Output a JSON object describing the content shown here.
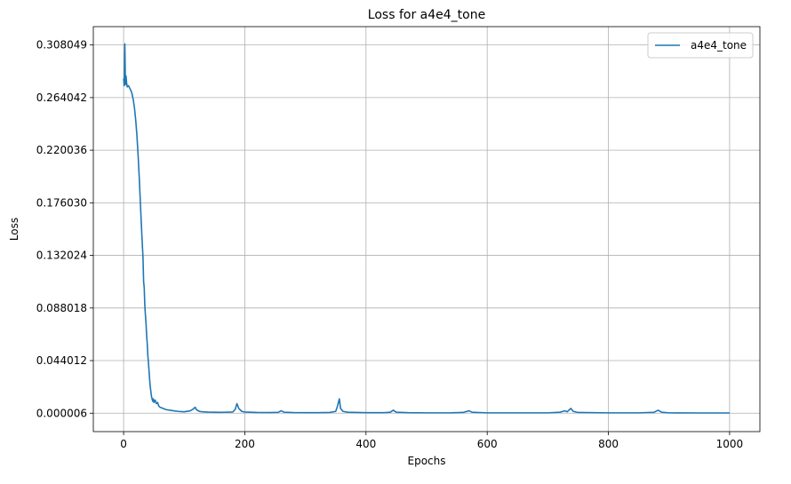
{
  "chart_data": {
    "type": "line",
    "title": "Loss for a4e4_tone",
    "xlabel": "Epochs",
    "ylabel": "Loss",
    "xlim": [
      -50,
      1050
    ],
    "ylim": [
      -0.0154,
      0.3234
    ],
    "x_ticks": [
      0,
      200,
      400,
      600,
      800,
      1000
    ],
    "y_ticks": [
      6e-06,
      0.044012,
      0.088018,
      0.132024,
      0.17603,
      0.220036,
      0.264042,
      0.308049
    ],
    "x_tick_labels": [
      "0",
      "200",
      "400",
      "600",
      "800",
      "1000"
    ],
    "y_tick_labels": [
      "0.000006",
      "0.044012",
      "0.088018",
      "0.132024",
      "0.176030",
      "0.220036",
      "0.264042",
      "0.308049"
    ],
    "grid": true,
    "legend_position": "top-right",
    "series": [
      {
        "name": "a4e4_tone",
        "color": "#1f77b4",
        "points": [
          [
            0,
            0.28
          ],
          [
            1,
            0.274
          ],
          [
            2,
            0.309
          ],
          [
            3,
            0.275
          ],
          [
            4,
            0.282
          ],
          [
            5,
            0.276
          ],
          [
            6,
            0.273
          ],
          [
            8,
            0.274
          ],
          [
            10,
            0.272
          ],
          [
            12,
            0.27
          ],
          [
            14,
            0.267
          ],
          [
            16,
            0.262
          ],
          [
            18,
            0.255
          ],
          [
            20,
            0.245
          ],
          [
            22,
            0.232
          ],
          [
            24,
            0.215
          ],
          [
            26,
            0.195
          ],
          [
            28,
            0.172
          ],
          [
            30,
            0.15
          ],
          [
            32,
            0.13
          ],
          [
            33,
            0.11
          ],
          [
            34,
            0.105
          ],
          [
            35,
            0.09
          ],
          [
            36,
            0.082
          ],
          [
            37,
            0.075
          ],
          [
            38,
            0.065
          ],
          [
            39,
            0.058
          ],
          [
            40,
            0.048
          ],
          [
            41,
            0.042
          ],
          [
            42,
            0.035
          ],
          [
            43,
            0.028
          ],
          [
            44,
            0.022
          ],
          [
            45,
            0.018
          ],
          [
            46,
            0.014
          ],
          [
            47,
            0.012
          ],
          [
            48,
            0.01
          ],
          [
            49,
            0.012
          ],
          [
            50,
            0.009
          ],
          [
            52,
            0.011
          ],
          [
            54,
            0.008
          ],
          [
            56,
            0.009
          ],
          [
            58,
            0.006
          ],
          [
            60,
            0.005
          ],
          [
            65,
            0.004
          ],
          [
            70,
            0.003
          ],
          [
            80,
            0.0022
          ],
          [
            90,
            0.0015
          ],
          [
            100,
            0.0012
          ],
          [
            110,
            0.002
          ],
          [
            115,
            0.0035
          ],
          [
            118,
            0.005
          ],
          [
            120,
            0.003
          ],
          [
            125,
            0.0015
          ],
          [
            130,
            0.0012
          ],
          [
            140,
            0.0009
          ],
          [
            160,
            0.0007
          ],
          [
            180,
            0.001
          ],
          [
            184,
            0.003
          ],
          [
            187,
            0.008
          ],
          [
            190,
            0.004
          ],
          [
            195,
            0.0015
          ],
          [
            200,
            0.001
          ],
          [
            220,
            0.0006
          ],
          [
            240,
            0.0005
          ],
          [
            255,
            0.0007
          ],
          [
            260,
            0.002
          ],
          [
            265,
            0.0008
          ],
          [
            280,
            0.0005
          ],
          [
            300,
            0.0004
          ],
          [
            320,
            0.0004
          ],
          [
            340,
            0.0006
          ],
          [
            350,
            0.0015
          ],
          [
            353,
            0.006
          ],
          [
            356,
            0.012
          ],
          [
            358,
            0.004
          ],
          [
            362,
            0.0015
          ],
          [
            370,
            0.0008
          ],
          [
            400,
            0.0004
          ],
          [
            430,
            0.0004
          ],
          [
            440,
            0.0008
          ],
          [
            445,
            0.0025
          ],
          [
            450,
            0.0008
          ],
          [
            470,
            0.0004
          ],
          [
            500,
            0.0003
          ],
          [
            540,
            0.0003
          ],
          [
            560,
            0.0006
          ],
          [
            570,
            0.002
          ],
          [
            575,
            0.0008
          ],
          [
            600,
            0.0003
          ],
          [
            650,
            0.0003
          ],
          [
            700,
            0.0003
          ],
          [
            720,
            0.0008
          ],
          [
            728,
            0.002
          ],
          [
            732,
            0.0012
          ],
          [
            738,
            0.004
          ],
          [
            742,
            0.0015
          ],
          [
            750,
            0.0006
          ],
          [
            800,
            0.0003
          ],
          [
            850,
            0.0003
          ],
          [
            875,
            0.0007
          ],
          [
            882,
            0.0025
          ],
          [
            888,
            0.0008
          ],
          [
            900,
            0.0003
          ],
          [
            950,
            0.0002
          ],
          [
            1000,
            0.0002
          ]
        ]
      }
    ]
  }
}
